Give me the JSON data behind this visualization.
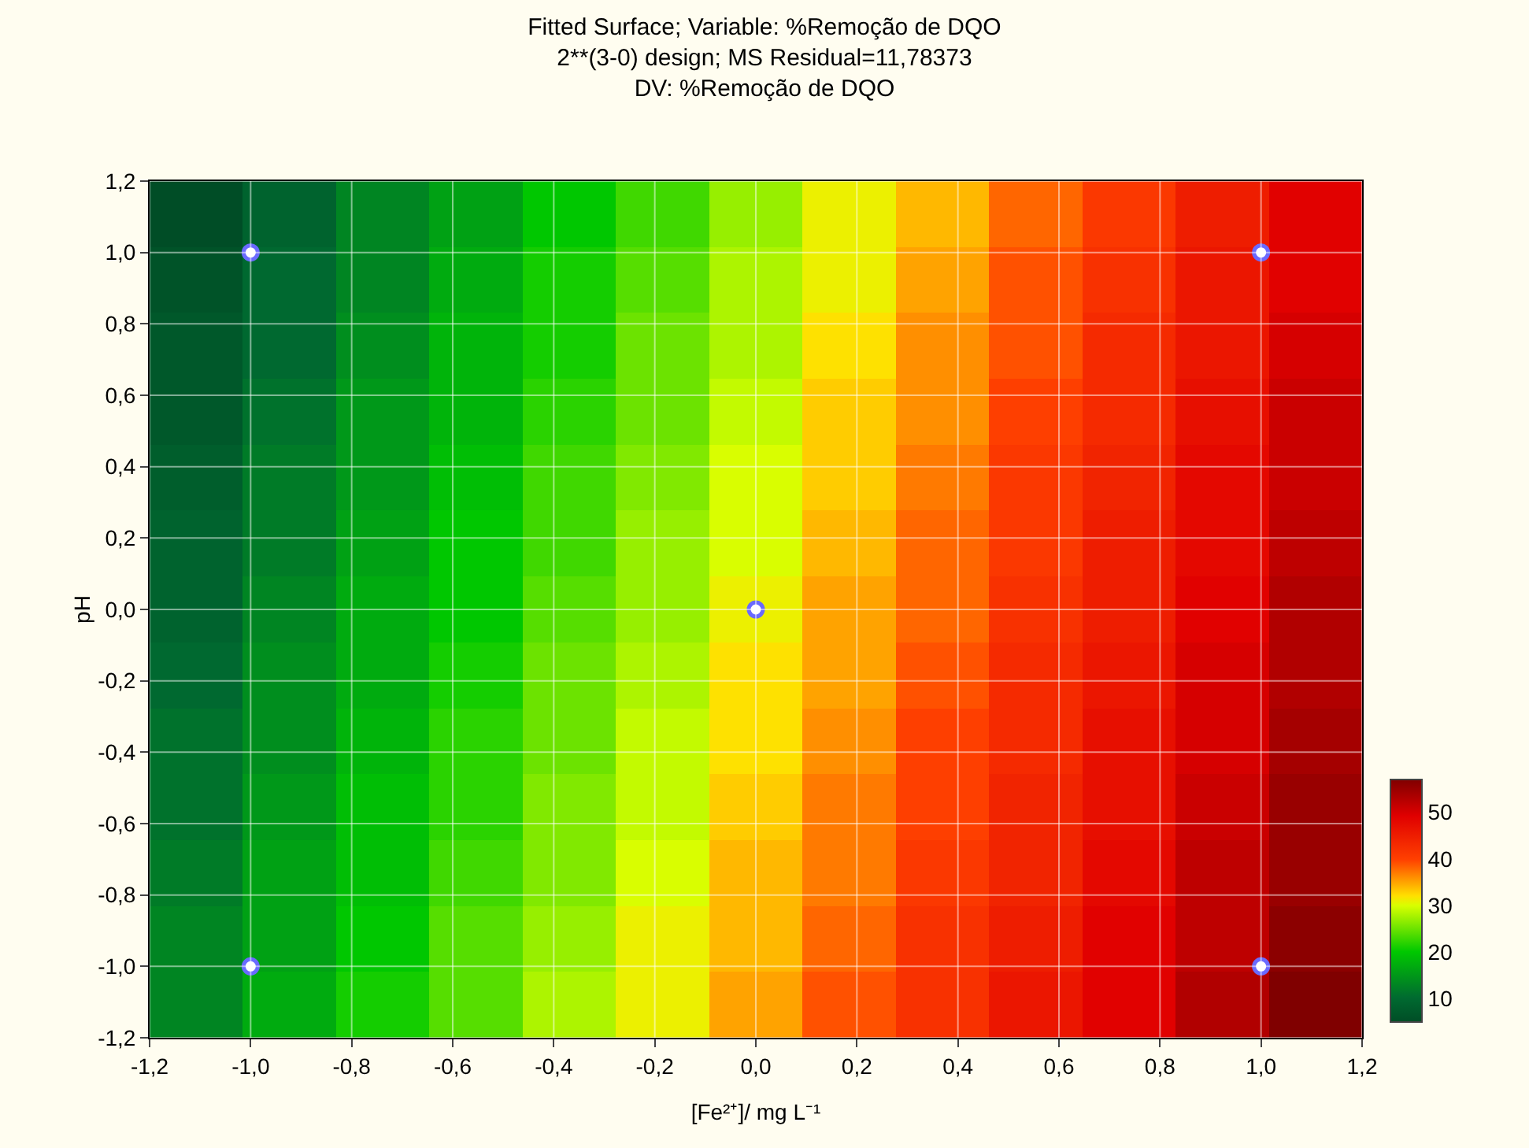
{
  "chart_data": {
    "type": "heatmap",
    "title": "Fitted Surface; Variable: %Remoção de DQO",
    "subtitle": "2**(3-0) design; MS Residual=11,78373\nDV: %Remoção de DQO",
    "xlabel": "[Fe²⁺]/ mg L⁻¹",
    "ylabel": "pH",
    "xlim": [
      -1.2,
      1.2
    ],
    "ylim": [
      -1.2,
      1.2
    ],
    "xticks": [
      {
        "value": -1.2,
        "label": "-1,2"
      },
      {
        "value": -1.0,
        "label": "-1,0"
      },
      {
        "value": -0.8,
        "label": "-0,8"
      },
      {
        "value": -0.6,
        "label": "-0,6"
      },
      {
        "value": -0.4,
        "label": "-0,4"
      },
      {
        "value": -0.2,
        "label": "-0,2"
      },
      {
        "value": 0,
        "label": "0,0"
      },
      {
        "value": 0.2,
        "label": "0,2"
      },
      {
        "value": 0.4,
        "label": "0,4"
      },
      {
        "value": 0.6,
        "label": "0,6"
      },
      {
        "value": 0.8,
        "label": "0,8"
      },
      {
        "value": 1.0,
        "label": "1,0"
      },
      {
        "value": 1.2,
        "label": "1,2"
      }
    ],
    "yticks": [
      {
        "value": -1.2,
        "label": "-1,2"
      },
      {
        "value": -1.0,
        "label": "-1,0"
      },
      {
        "value": -0.8,
        "label": "-0,8"
      },
      {
        "value": -0.6,
        "label": "-0,6"
      },
      {
        "value": -0.4,
        "label": "-0,4"
      },
      {
        "value": -0.2,
        "label": "-0,2"
      },
      {
        "value": 0,
        "label": "0,0"
      },
      {
        "value": 0.2,
        "label": "0,2"
      },
      {
        "value": 0.4,
        "label": "0,4"
      },
      {
        "value": 0.6,
        "label": "0,6"
      },
      {
        "value": 0.8,
        "label": "0,8"
      },
      {
        "value": 1.0,
        "label": "1,0"
      },
      {
        "value": 1.2,
        "label": "1,2"
      }
    ],
    "cells": [
      [
        5,
        9,
        13,
        16,
        20,
        23,
        27,
        31,
        34,
        38,
        41,
        45,
        49
      ],
      [
        6,
        10,
        13,
        17,
        21,
        24,
        28,
        31,
        35,
        39,
        42,
        46,
        49
      ],
      [
        7,
        10,
        14,
        18,
        21,
        25,
        28,
        32,
        36,
        39,
        43,
        46,
        50
      ],
      [
        7,
        11,
        15,
        18,
        22,
        25,
        29,
        33,
        36,
        40,
        43,
        47,
        51
      ],
      [
        8,
        12,
        15,
        19,
        23,
        26,
        30,
        33,
        37,
        41,
        44,
        48,
        51
      ],
      [
        9,
        12,
        16,
        20,
        23,
        27,
        30,
        34,
        38,
        41,
        45,
        48,
        52
      ],
      [
        9,
        13,
        17,
        20,
        24,
        27,
        31,
        35,
        38,
        42,
        45,
        49,
        53
      ],
      [
        10,
        14,
        17,
        21,
        25,
        28,
        32,
        35,
        39,
        43,
        46,
        50,
        53
      ],
      [
        11,
        14,
        18,
        22,
        25,
        29,
        32,
        36,
        40,
        43,
        47,
        50,
        54
      ],
      [
        11,
        15,
        19,
        22,
        26,
        29,
        33,
        37,
        40,
        44,
        47,
        51,
        55
      ],
      [
        12,
        16,
        19,
        23,
        26,
        30,
        34,
        37,
        41,
        44,
        48,
        52,
        55
      ],
      [
        13,
        16,
        20,
        24,
        27,
        31,
        34,
        38,
        42,
        45,
        49,
        52,
        56
      ],
      [
        13,
        17,
        21,
        24,
        28,
        31,
        35,
        39,
        42,
        46,
        49,
        53,
        57
      ]
    ],
    "clim": [
      5,
      57
    ],
    "cticks": [
      10,
      20,
      30,
      40,
      50
    ],
    "series": [
      {
        "type": "scatter",
        "color": "#ffffff",
        "x": [
          -1,
          1,
          0,
          -1,
          1
        ],
        "values": [
          1,
          1,
          0,
          -1,
          -1
        ]
      }
    ],
    "marker": "circle",
    "grid": true
  }
}
